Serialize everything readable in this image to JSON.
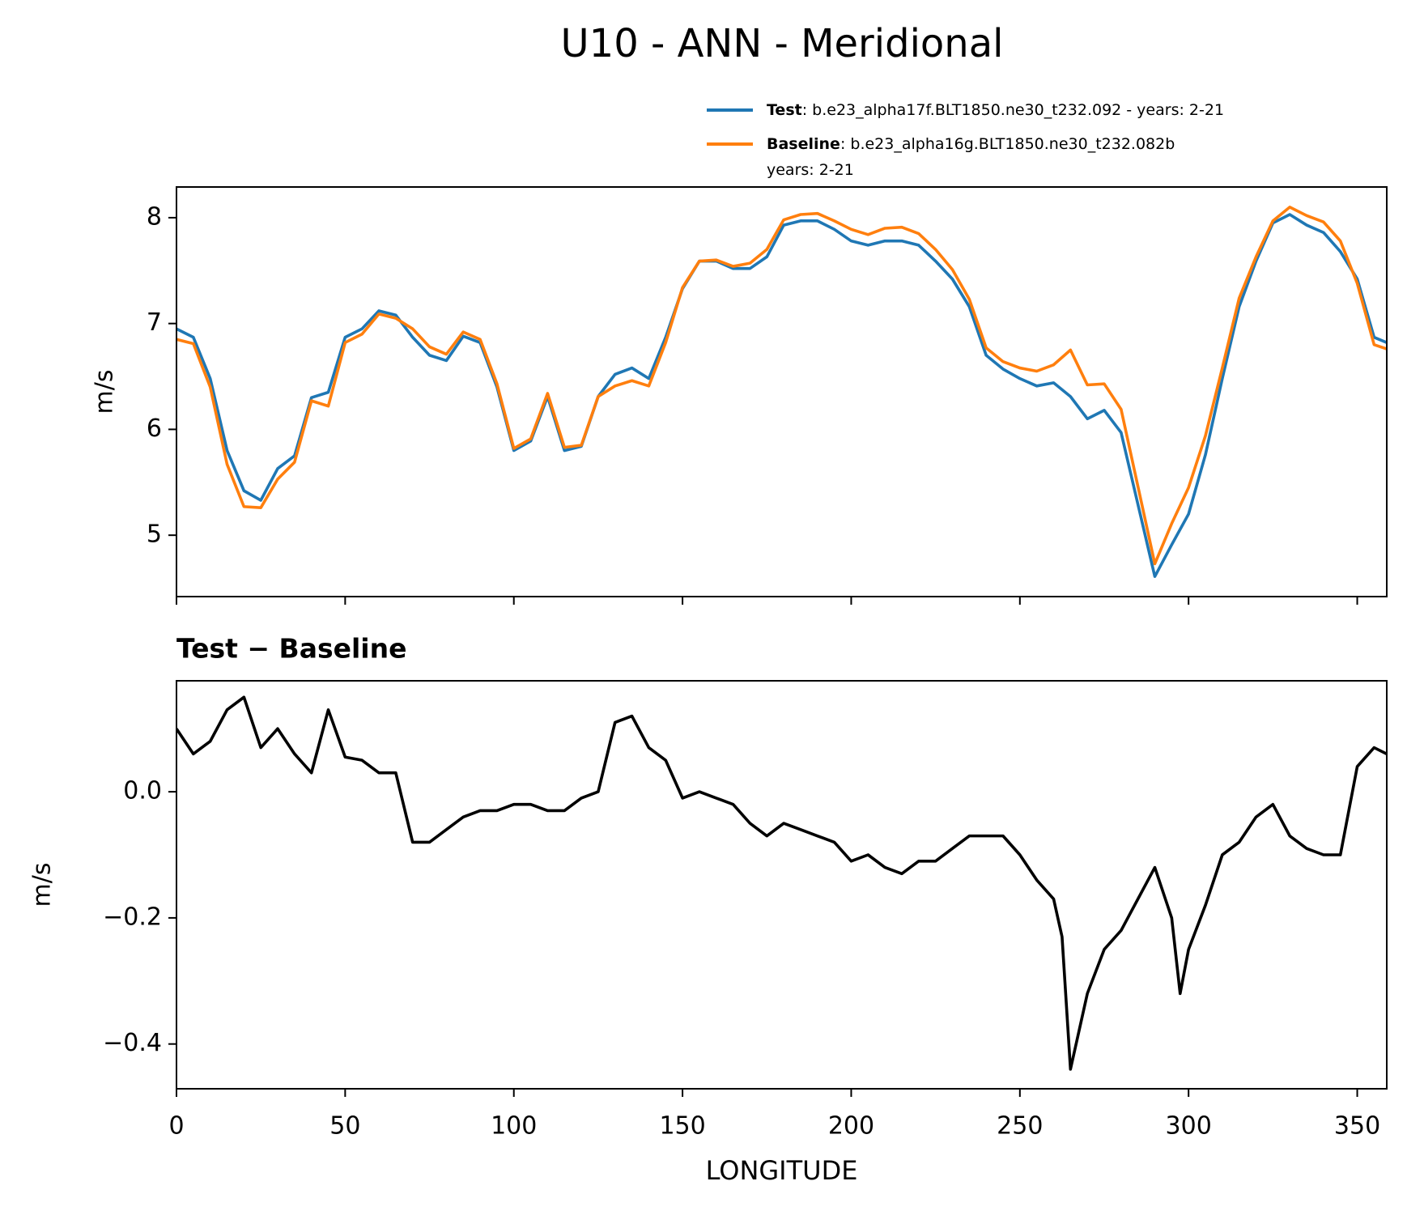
{
  "title": "U10 - ANN - Meridional",
  "chart_data": [
    {
      "type": "line",
      "ylabel": "m/s",
      "x": [
        0,
        5,
        10,
        15,
        20,
        25,
        30,
        35,
        40,
        45,
        50,
        55,
        60,
        65,
        70,
        75,
        80,
        85,
        90,
        95,
        100,
        105,
        110,
        115,
        120,
        125,
        130,
        135,
        140,
        145,
        150,
        155,
        160,
        165,
        170,
        175,
        180,
        185,
        190,
        195,
        200,
        205,
        210,
        215,
        220,
        225,
        230,
        235,
        240,
        245,
        250,
        255,
        260,
        265,
        270,
        275,
        280,
        285,
        290,
        295,
        300,
        305,
        310,
        315,
        320,
        325,
        330,
        335,
        340,
        345,
        350,
        355,
        358.75
      ],
      "series": [
        {
          "name": "Test",
          "legend_label": [
            ": b.e23_alpha17f.BLT1850.ne30_t232.092 - years: 2-21"
          ],
          "color": "#1f77b4",
          "values": [
            6.95,
            6.87,
            6.48,
            5.8,
            5.42,
            5.33,
            5.63,
            5.75,
            6.3,
            6.35,
            6.87,
            6.95,
            7.12,
            7.08,
            6.87,
            6.7,
            6.65,
            6.88,
            6.82,
            6.4,
            5.8,
            5.89,
            6.31,
            5.8,
            5.84,
            6.31,
            6.52,
            6.58,
            6.48,
            6.87,
            7.33,
            7.59,
            7.59,
            7.52,
            7.52,
            7.63,
            7.93,
            7.97,
            7.97,
            7.89,
            7.78,
            7.74,
            7.78,
            7.78,
            7.74,
            7.59,
            7.42,
            7.16,
            6.7,
            6.57,
            6.48,
            6.41,
            6.44,
            6.31,
            6.1,
            6.18,
            5.97,
            5.29,
            4.61,
            4.91,
            5.2,
            5.76,
            6.48,
            7.16,
            7.59,
            7.95,
            8.03,
            7.93,
            7.86,
            7.68,
            7.42,
            6.87,
            6.82
          ]
        },
        {
          "name": "Baseline",
          "legend_label": [
            ": b.e23_alpha16g.BLT1850.ne30_t232.082b",
            "years: 2-21"
          ],
          "color": "#ff7f0e",
          "values": [
            6.85,
            6.81,
            6.4,
            5.67,
            5.27,
            5.26,
            5.53,
            5.69,
            6.27,
            6.22,
            6.82,
            6.9,
            7.09,
            7.05,
            6.95,
            6.78,
            6.71,
            6.92,
            6.85,
            6.43,
            5.82,
            5.91,
            6.34,
            5.83,
            5.85,
            6.31,
            6.41,
            6.46,
            6.41,
            6.82,
            7.34,
            7.59,
            7.6,
            7.54,
            7.57,
            7.7,
            7.98,
            8.03,
            8.04,
            7.97,
            7.89,
            7.84,
            7.9,
            7.91,
            7.85,
            7.7,
            7.51,
            7.23,
            6.77,
            6.64,
            6.58,
            6.55,
            6.61,
            6.75,
            6.42,
            6.43,
            6.19,
            5.46,
            4.73,
            5.11,
            5.45,
            5.94,
            6.58,
            7.24,
            7.63,
            7.97,
            8.1,
            8.02,
            7.96,
            7.78,
            7.38,
            6.8,
            6.76
          ]
        }
      ],
      "xlim": [
        0,
        358.75
      ],
      "xticks": [
        0,
        50,
        100,
        150,
        200,
        250,
        300,
        350
      ],
      "ylim": [
        4.42,
        8.29
      ],
      "yticks": [
        5,
        6,
        7,
        8
      ]
    },
    {
      "type": "line",
      "title": "Test − Baseline",
      "ylabel": "m/s",
      "xlabel": "LONGITUDE",
      "x": [
        0,
        5,
        10,
        15,
        20,
        25,
        30,
        35,
        40,
        45,
        50,
        55,
        60,
        65,
        70,
        75,
        80,
        85,
        90,
        95,
        100,
        105,
        110,
        115,
        120,
        125,
        130,
        135,
        140,
        145,
        150,
        155,
        160,
        165,
        170,
        175,
        180,
        185,
        190,
        195,
        200,
        205,
        210,
        215,
        220,
        225,
        230,
        235,
        240,
        245,
        250,
        255,
        260,
        262.5,
        265,
        270,
        275,
        280,
        285,
        290,
        295,
        297.5,
        300,
        305,
        310,
        315,
        320,
        325,
        330,
        335,
        340,
        345,
        350,
        355,
        358.75
      ],
      "series": [
        {
          "color": "#000000",
          "values": [
            0.1,
            0.06,
            0.08,
            0.13,
            0.15,
            0.07,
            0.1,
            0.06,
            0.03,
            0.13,
            0.055,
            0.05,
            0.03,
            0.03,
            -0.08,
            -0.08,
            -0.06,
            -0.04,
            -0.03,
            -0.03,
            -0.02,
            -0.02,
            -0.03,
            -0.03,
            -0.01,
            0,
            0.11,
            0.12,
            0.07,
            0.05,
            -0.01,
            0,
            -0.01,
            -0.02,
            -0.05,
            -0.07,
            -0.05,
            -0.06,
            -0.07,
            -0.08,
            -0.11,
            -0.1,
            -0.12,
            -0.13,
            -0.11,
            -0.11,
            -0.09,
            -0.07,
            -0.07,
            -0.07,
            -0.1,
            -0.14,
            -0.17,
            -0.23,
            -0.44,
            -0.32,
            -0.25,
            -0.22,
            -0.17,
            -0.12,
            -0.2,
            -0.32,
            -0.25,
            -0.18,
            -0.1,
            -0.08,
            -0.04,
            -0.02,
            -0.07,
            -0.09,
            -0.1,
            -0.1,
            0.04,
            0.07,
            0.06
          ]
        }
      ],
      "xlim": [
        0,
        358.75
      ],
      "xticks": [
        0,
        50,
        100,
        150,
        200,
        250,
        300,
        350
      ],
      "ylim": [
        -0.471,
        0.176
      ],
      "yticks": [
        {
          "value": 0,
          "label": "0.0"
        },
        {
          "value": -0.2,
          "label": "−0.2"
        },
        {
          "value": -0.4,
          "label": "−0.4"
        }
      ]
    }
  ]
}
